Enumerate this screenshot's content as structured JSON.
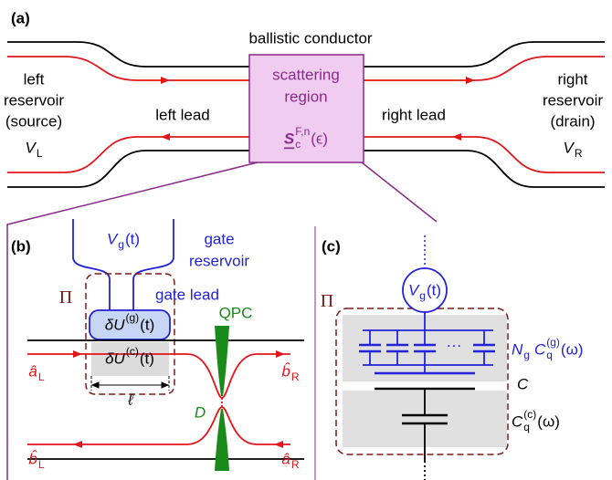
{
  "panel_a": {
    "label": "(a)",
    "title": "ballistic conductor",
    "left_reservoir": [
      "left",
      "reservoir",
      "(source)"
    ],
    "left_voltage": {
      "base": "V",
      "sub": "L"
    },
    "left_lead": "left lead",
    "region": [
      "scattering",
      "region"
    ],
    "matrix": {
      "base": "S",
      "sup": "F,n",
      "sub": "c",
      "arg": "(ϵ)"
    },
    "right_lead": "right lead",
    "right_reservoir": [
      "right",
      "reservoir",
      "(drain)"
    ],
    "right_voltage": {
      "base": "V",
      "sub": "R"
    }
  },
  "panel_b": {
    "label": "(b)",
    "gate_voltage": {
      "base": "V",
      "sub": "g",
      "arg": "(t)"
    },
    "gate_reservoir": [
      "gate",
      "reservoir"
    ],
    "gate_lead": "gate lead",
    "region": "Π",
    "gate_potential": {
      "base": "δU",
      "sup": "(g)",
      "arg": "(t)"
    },
    "channel_potential": {
      "base": "δU",
      "sup": "(c)",
      "arg": "(t)"
    },
    "qpc": "QPC",
    "transmission": "D",
    "length": "ℓ",
    "a_left": {
      "base": "â",
      "sub": "L"
    },
    "b_right": {
      "base": "b̂",
      "sub": "R"
    },
    "b_left": {
      "base": "b̂",
      "sub": "L"
    },
    "a_right": {
      "base": "â",
      "sub": "R"
    }
  },
  "panel_c": {
    "label": "(c)",
    "gate_voltage": {
      "base": "V",
      "sub": "g",
      "arg": "(t)"
    },
    "region": "Π",
    "ellipsis": "···",
    "gate_capacitance": [
      {
        "base": "N",
        "sub": "g"
      },
      {
        "base": "C",
        "sup": "(g)",
        "sub": "q",
        "arg": "(ω)"
      }
    ],
    "geometric_capacitance": "C",
    "channel_capacitance": {
      "base": "C",
      "sup": "(c)",
      "sub": "q",
      "arg": "(ω)"
    }
  }
}
